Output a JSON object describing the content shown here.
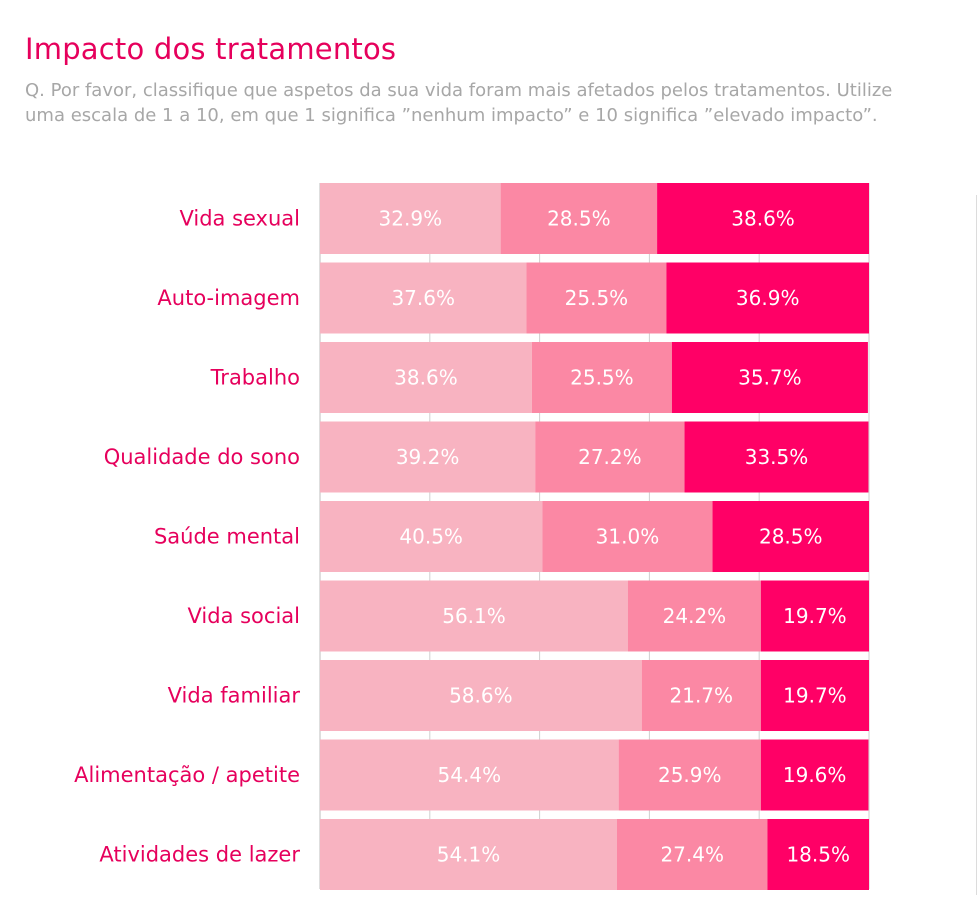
{
  "title": "Impacto dos tratamentos",
  "subtitle": "Q. Por favor, classifique que aspetos da sua vida foram mais afetados pelos tratamentos. Utilize uma escala de 1 a 10, em que 1 significa ”nenhum impacto” e 10 significa ”elevado impacto”.",
  "colors": {
    "accent": "#e6005c",
    "low": "#f8b3c1",
    "mid": "#fb88a4",
    "high": "#ff0066",
    "subtitle": "#a7a7a7",
    "grid": "#cfcfcf"
  },
  "chart_data": {
    "type": "bar",
    "orientation": "horizontal",
    "stacked": true,
    "normalized_to": 100,
    "categories": [
      "Vida sexual",
      "Auto-imagem",
      "Trabalho",
      "Qualidade do sono",
      "Saúde mental",
      "Vida social",
      "Vida familiar",
      "Alimentação / apetite",
      "Atividades de lazer"
    ],
    "series": [
      {
        "color": "#f8b3c1",
        "values": [
          32.9,
          37.6,
          38.6,
          39.2,
          40.5,
          56.1,
          58.6,
          54.4,
          54.1
        ]
      },
      {
        "color": "#fb88a4",
        "values": [
          28.5,
          25.5,
          25.5,
          27.2,
          31.0,
          24.2,
          21.7,
          25.9,
          27.4
        ]
      },
      {
        "color": "#ff0066",
        "values": [
          38.6,
          36.9,
          35.7,
          33.5,
          28.5,
          19.7,
          19.7,
          19.6,
          18.5
        ]
      }
    ],
    "labels": [
      [
        "32.9%",
        "28.5%",
        "38.6%"
      ],
      [
        "37.6%",
        "25.5%",
        "36.9%"
      ],
      [
        "38.6%",
        "25.5%",
        "35.7%"
      ],
      [
        "39.2%",
        "27.2%",
        "33.5%"
      ],
      [
        "40.5%",
        "31.0%",
        "28.5%"
      ],
      [
        "56.1%",
        "24.2%",
        "19.7%"
      ],
      [
        "58.6%",
        "21.7%",
        "19.7%"
      ],
      [
        "54.4%",
        "25.9%",
        "19.6%"
      ],
      [
        "54.1%",
        "27.4%",
        "18.5%"
      ]
    ],
    "xlim": [
      0,
      100
    ],
    "gridlines": [
      0,
      20,
      40,
      60,
      80,
      100
    ],
    "legend": "none"
  }
}
